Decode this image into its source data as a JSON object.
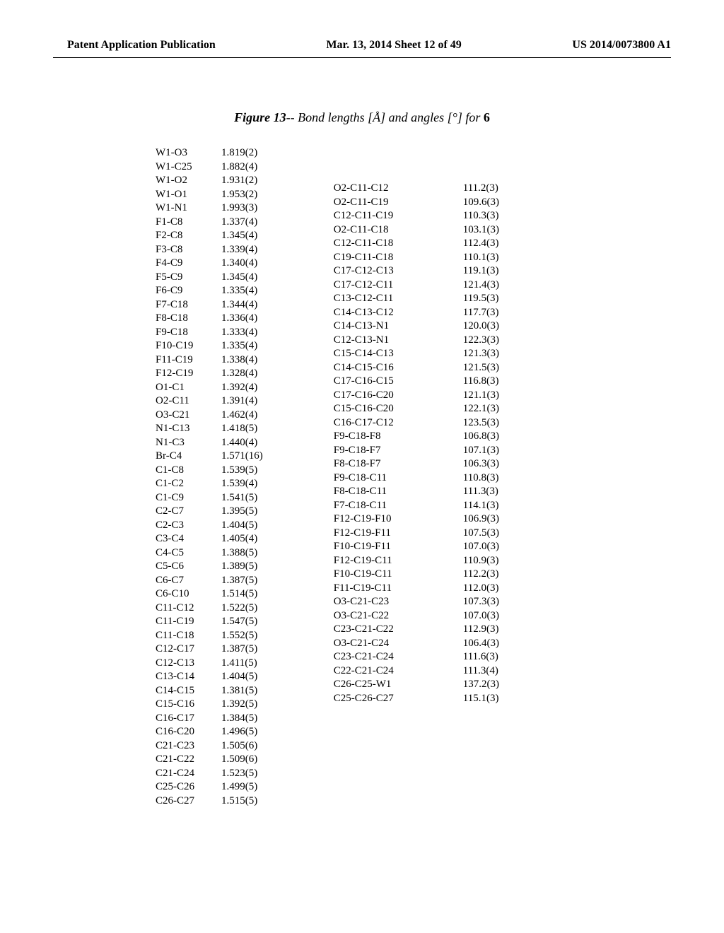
{
  "header": {
    "left": "Patent Application Publication",
    "center": "Mar. 13, 2014  Sheet 12 of 49",
    "right": "US 2014/0073800 A1"
  },
  "figure": {
    "prefix": "Figure 13",
    "dash": "--",
    "desc": " Bond lengths [Å] and angles [°] for ",
    "compound": "6"
  },
  "bond_lengths": {
    "labels": [
      "W1-O3",
      "W1-C25",
      "W1-O2",
      "W1-O1",
      "W1-N1",
      "F1-C8",
      "F2-C8",
      "F3-C8",
      "F4-C9",
      "F5-C9",
      "F6-C9",
      "F7-C18",
      "F8-C18",
      "F9-C18",
      "F10-C19",
      "F11-C19",
      "F12-C19",
      "O1-C1",
      "O2-C11",
      "O3-C21",
      "N1-C13",
      "N1-C3",
      "Br-C4",
      "C1-C8",
      "C1-C2",
      "C1-C9",
      "C2-C7",
      "C2-C3",
      "C3-C4",
      "C4-C5",
      "C5-C6",
      "C6-C7",
      "C6-C10",
      "C11-C12",
      "C11-C19",
      "C11-C18",
      "C12-C17",
      "C12-C13",
      "C13-C14",
      "C14-C15",
      "C15-C16",
      "C16-C17",
      "C16-C20",
      "C21-C23",
      "C21-C22",
      "C21-C24",
      "C25-C26",
      "C26-C27"
    ],
    "values": [
      "1.819(2)",
      "1.882(4)",
      "1.931(2)",
      "1.953(2)",
      "1.993(3)",
      "1.337(4)",
      "1.345(4)",
      "1.339(4)",
      "1.340(4)",
      "1.345(4)",
      "1.335(4)",
      "1.344(4)",
      "1.336(4)",
      "1.333(4)",
      "1.335(4)",
      "1.338(4)",
      "1.328(4)",
      "1.392(4)",
      "1.391(4)",
      "1.462(4)",
      "1.418(5)",
      "1.440(4)",
      "1.571(16)",
      "1.539(5)",
      "1.539(4)",
      "1.541(5)",
      "1.395(5)",
      "1.404(5)",
      "1.405(4)",
      "1.388(5)",
      "1.389(5)",
      "1.387(5)",
      "1.514(5)",
      "1.522(5)",
      "1.547(5)",
      "1.552(5)",
      "1.387(5)",
      "1.411(5)",
      "1.404(5)",
      "1.381(5)",
      "1.392(5)",
      "1.384(5)",
      "1.496(5)",
      "1.505(6)",
      "1.509(6)",
      "1.523(5)",
      "1.499(5)",
      "1.515(5)"
    ]
  },
  "bond_angles": {
    "labels": [
      "O2-C11-C12",
      "O2-C11-C19",
      "C12-C11-C19",
      "O2-C11-C18",
      "C12-C11-C18",
      "C19-C11-C18",
      "C17-C12-C13",
      "C17-C12-C11",
      "C13-C12-C11",
      "C14-C13-C12",
      "C14-C13-N1",
      "C12-C13-N1",
      "C15-C14-C13",
      "C14-C15-C16",
      "C17-C16-C15",
      "C17-C16-C20",
      "C15-C16-C20",
      "C16-C17-C12",
      "F9-C18-F8",
      "F9-C18-F7",
      "F8-C18-F7",
      "F9-C18-C11",
      "F8-C18-C11",
      "F7-C18-C11",
      "F12-C19-F10",
      "F12-C19-F11",
      "F10-C19-F11",
      "F12-C19-C11",
      "F10-C19-C11",
      "F11-C19-C11",
      "O3-C21-C23",
      "O3-C21-C22",
      "C23-C21-C22",
      "O3-C21-C24",
      "C23-C21-C24",
      "C22-C21-C24",
      "C26-C25-W1",
      "C25-C26-C27"
    ],
    "values": [
      "111.2(3)",
      "109.6(3)",
      "110.3(3)",
      "103.1(3)",
      "112.4(3)",
      "110.1(3)",
      "119.1(3)",
      "121.4(3)",
      "119.5(3)",
      "117.7(3)",
      "120.0(3)",
      "122.3(3)",
      "121.3(3)",
      "121.5(3)",
      "116.8(3)",
      "121.1(3)",
      "122.1(3)",
      "123.5(3)",
      "106.8(3)",
      "107.1(3)",
      "106.3(3)",
      "110.8(3)",
      "111.3(3)",
      "114.1(3)",
      "106.9(3)",
      "107.5(3)",
      "107.0(3)",
      "110.9(3)",
      "112.2(3)",
      "112.0(3)",
      "107.3(3)",
      "107.0(3)",
      "112.9(3)",
      "106.4(3)",
      "111.6(3)",
      "111.3(4)",
      "137.2(3)",
      "115.1(3)"
    ]
  }
}
